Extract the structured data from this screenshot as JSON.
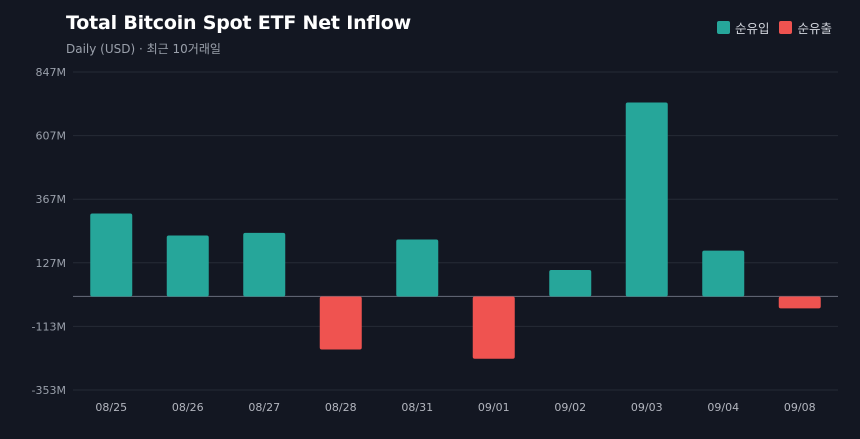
{
  "header": {
    "title": "Total Bitcoin Spot ETF Net Inflow",
    "subtitle": "Daily (USD) · 최근 10거래일"
  },
  "legend": {
    "inflow_label": "순유입",
    "outflow_label": "순유출"
  },
  "colors": {
    "inflow": "#26a69a",
    "outflow": "#ef5350",
    "grid": "#262b36",
    "zero_line": "#5d6270"
  },
  "chart_data": {
    "type": "bar",
    "title": "Total Bitcoin Spot ETF Net Inflow",
    "subtitle": "Daily (USD) · 최근 10거래일",
    "categories": [
      "08/25",
      "08/26",
      "08/27",
      "08/28",
      "08/31",
      "09/01",
      "09/02",
      "09/03",
      "09/04",
      "09/08"
    ],
    "values": [
      313,
      230,
      240,
      -200,
      215,
      -235,
      100,
      732,
      173,
      -45
    ],
    "unit": "M",
    "ylim": [
      -353,
      847
    ],
    "yticks": [
      -353,
      -113,
      127,
      367,
      607,
      847
    ],
    "ytick_labels": [
      "-353M",
      "-113M",
      "127M",
      "367M",
      "607M",
      "847M"
    ],
    "grid": true,
    "legend_position": "top-right",
    "series": [
      {
        "name": "순유입",
        "color": "#26a69a"
      },
      {
        "name": "순유출",
        "color": "#ef5350"
      }
    ]
  }
}
